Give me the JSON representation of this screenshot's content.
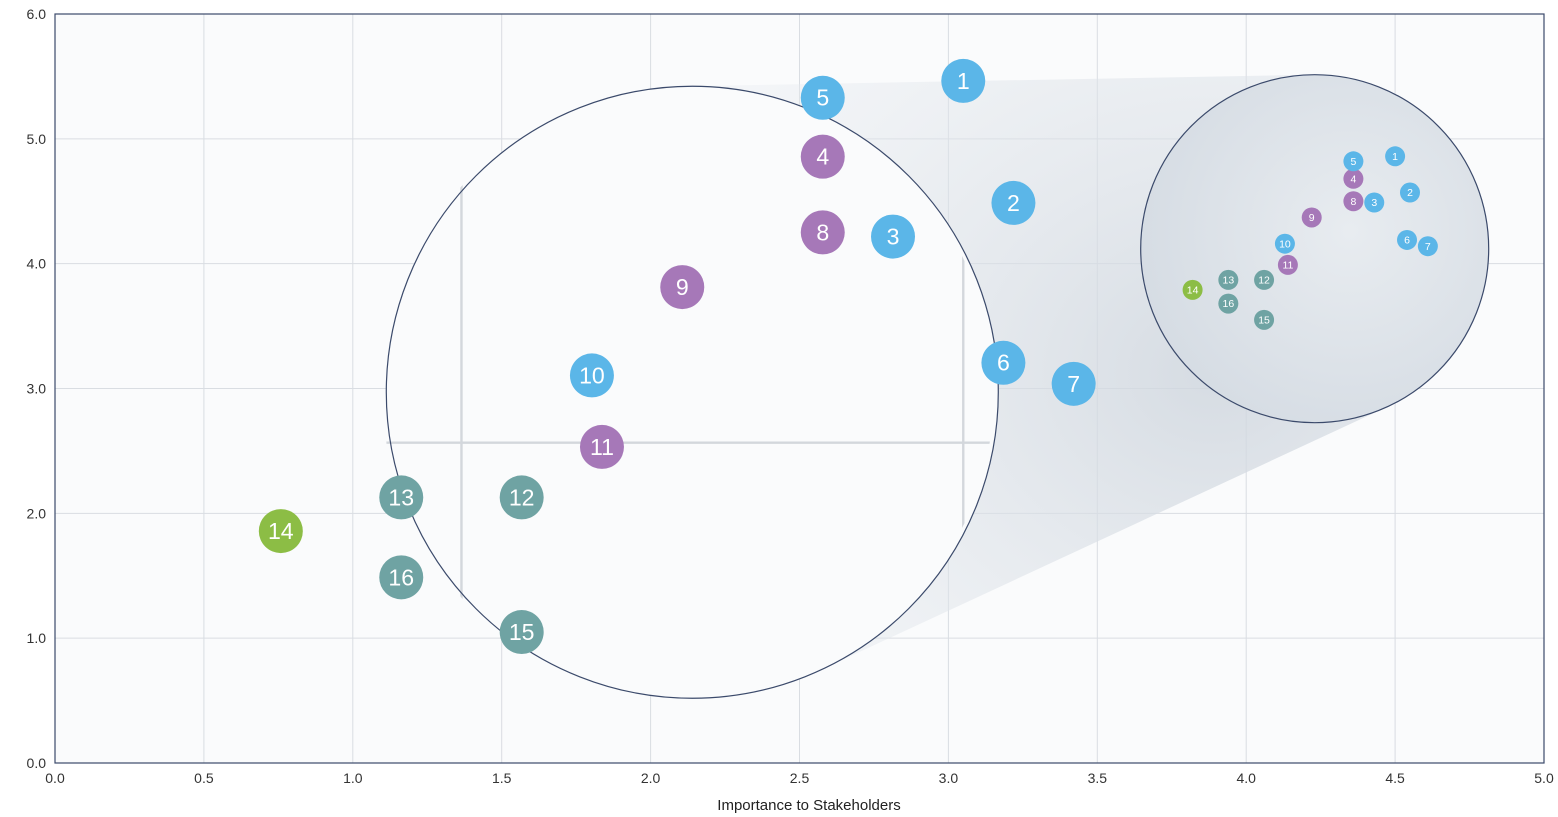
{
  "chart_data": {
    "type": "scatter",
    "title": "",
    "xlabel": "Importance to Stakeholders",
    "ylabel": "",
    "xlim": [
      0,
      5
    ],
    "ylim": [
      0,
      6
    ],
    "x_ticks": [
      "0.0",
      "0.5",
      "1.0",
      "1.5",
      "2.0",
      "2.5",
      "3.0",
      "3.5",
      "4.0",
      "4.5",
      "5.0"
    ],
    "y_ticks": [
      "0.0",
      "1.0",
      "2.0",
      "3.0",
      "4.0",
      "5.0",
      "6.0"
    ],
    "grid": true,
    "zoom_inset": {
      "source_center": [
        4.23,
        4.12
      ],
      "magnification": 3.37,
      "center": [
        2.14,
        2.97
      ]
    },
    "colors": {
      "blue": "#5bb6e8",
      "purple": "#a678b8",
      "teal": "#6fa3a3",
      "green": "#8cbd45",
      "grid": "#d9dde2",
      "circle_outline": "#3b4a6b"
    },
    "points": [
      {
        "label": "1",
        "x": 4.5,
        "y": 4.86,
        "group": "blue"
      },
      {
        "label": "2",
        "x": 4.55,
        "y": 4.57,
        "group": "blue"
      },
      {
        "label": "3",
        "x": 4.43,
        "y": 4.49,
        "group": "blue"
      },
      {
        "label": "4",
        "x": 4.36,
        "y": 4.68,
        "group": "purple"
      },
      {
        "label": "5",
        "x": 4.36,
        "y": 4.82,
        "group": "blue"
      },
      {
        "label": "6",
        "x": 4.54,
        "y": 4.19,
        "group": "blue"
      },
      {
        "label": "7",
        "x": 4.61,
        "y": 4.14,
        "group": "blue"
      },
      {
        "label": "8",
        "x": 4.36,
        "y": 4.5,
        "group": "purple"
      },
      {
        "label": "9",
        "x": 4.22,
        "y": 4.37,
        "group": "purple"
      },
      {
        "label": "10",
        "x": 4.13,
        "y": 4.16,
        "group": "blue"
      },
      {
        "label": "11",
        "x": 4.14,
        "y": 3.99,
        "group": "purple"
      },
      {
        "label": "12",
        "x": 4.06,
        "y": 3.87,
        "group": "teal"
      },
      {
        "label": "13",
        "x": 3.94,
        "y": 3.87,
        "group": "teal"
      },
      {
        "label": "14",
        "x": 3.82,
        "y": 3.79,
        "group": "green"
      },
      {
        "label": "15",
        "x": 4.06,
        "y": 3.55,
        "group": "teal"
      },
      {
        "label": "16",
        "x": 3.94,
        "y": 3.68,
        "group": "teal"
      }
    ]
  }
}
